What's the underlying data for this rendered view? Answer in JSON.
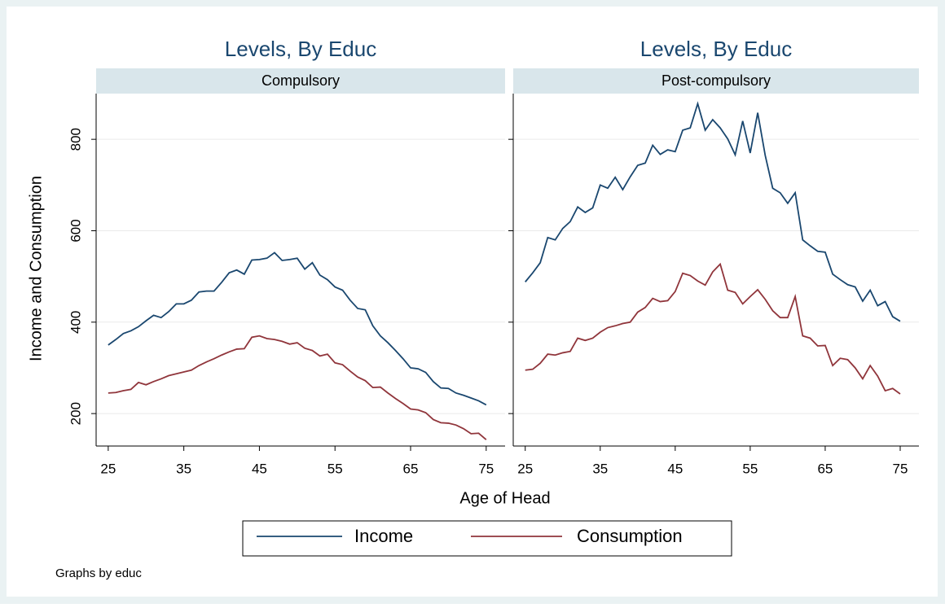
{
  "chart_data": [
    {
      "type": "line",
      "title": "Levels, By Educ",
      "subtitle": "Compulsory",
      "x": [
        25,
        26,
        27,
        28,
        29,
        30,
        31,
        32,
        33,
        34,
        35,
        36,
        37,
        38,
        39,
        40,
        41,
        42,
        43,
        44,
        45,
        46,
        47,
        48,
        49,
        50,
        51,
        52,
        53,
        54,
        55,
        56,
        57,
        58,
        59,
        60,
        61,
        62,
        63,
        64,
        65,
        66,
        67,
        68,
        69,
        70,
        71,
        72,
        73,
        74,
        75
      ],
      "series": [
        {
          "name": "Income",
          "color": "#1a476f",
          "values": [
            350,
            362,
            375,
            381,
            390,
            403,
            415,
            410,
            423,
            440,
            440,
            448,
            466,
            468,
            468,
            487,
            508,
            514,
            505,
            536,
            537,
            540,
            552,
            535,
            537,
            540,
            516,
            530,
            503,
            493,
            477,
            470,
            448,
            430,
            427,
            392,
            370,
            355,
            338,
            320,
            300,
            298,
            290,
            270,
            256,
            255,
            245,
            240,
            234,
            228,
            219
          ]
        },
        {
          "name": "Consumption",
          "color": "#90353b",
          "values": [
            245,
            246,
            250,
            253,
            268,
            263,
            270,
            276,
            283,
            287,
            291,
            295,
            305,
            313,
            320,
            328,
            335,
            341,
            342,
            367,
            370,
            364,
            362,
            358,
            352,
            355,
            343,
            338,
            326,
            330,
            311,
            307,
            293,
            280,
            272,
            257,
            258,
            245,
            233,
            222,
            210,
            208,
            202,
            187,
            180,
            179,
            175,
            167,
            156,
            157,
            143
          ]
        }
      ],
      "xlim": [
        23.4,
        77.5
      ],
      "ylim": [
        129,
        900
      ],
      "xticks": [
        25,
        35,
        45,
        55,
        65,
        75
      ],
      "yticks": [
        200,
        400,
        600,
        800
      ],
      "grid": true
    },
    {
      "type": "line",
      "title": "Levels, By Educ",
      "subtitle": "Post-compulsory",
      "x": [
        25,
        26,
        27,
        28,
        29,
        30,
        31,
        32,
        33,
        34,
        35,
        36,
        37,
        38,
        39,
        40,
        41,
        42,
        43,
        44,
        45,
        46,
        47,
        48,
        49,
        50,
        51,
        52,
        53,
        54,
        55,
        56,
        57,
        58,
        59,
        60,
        61,
        62,
        63,
        64,
        65,
        66,
        67,
        68,
        69,
        70,
        71,
        72,
        73,
        74,
        75
      ],
      "series": [
        {
          "name": "Income",
          "color": "#1a476f",
          "values": [
            488,
            508,
            530,
            585,
            580,
            605,
            620,
            652,
            640,
            650,
            700,
            693,
            717,
            690,
            718,
            743,
            748,
            787,
            767,
            777,
            773,
            820,
            825,
            878,
            820,
            843,
            825,
            801,
            766,
            840,
            770,
            858,
            765,
            693,
            683,
            660,
            683,
            580,
            567,
            555,
            553,
            505,
            493,
            482,
            477,
            446,
            470,
            436,
            445,
            412,
            402
          ]
        },
        {
          "name": "Consumption",
          "color": "#90353b",
          "values": [
            295,
            297,
            310,
            330,
            328,
            333,
            336,
            365,
            360,
            365,
            378,
            388,
            392,
            397,
            400,
            422,
            432,
            452,
            445,
            447,
            467,
            507,
            502,
            490,
            481,
            510,
            527,
            470,
            465,
            440,
            456,
            471,
            450,
            425,
            410,
            410,
            456,
            370,
            365,
            348,
            349,
            305,
            321,
            318,
            300,
            276,
            305,
            282,
            250,
            255,
            243
          ]
        }
      ],
      "xlim": [
        23.4,
        77.5
      ],
      "ylim": [
        129,
        900
      ],
      "xticks": [
        25,
        35,
        45,
        55,
        65,
        75
      ],
      "yticks": [
        200,
        400,
        600,
        800
      ],
      "grid": true
    }
  ],
  "x_label": "Age of Head",
  "y_label": "Income and Consumption",
  "note": "Graphs by educ"
}
